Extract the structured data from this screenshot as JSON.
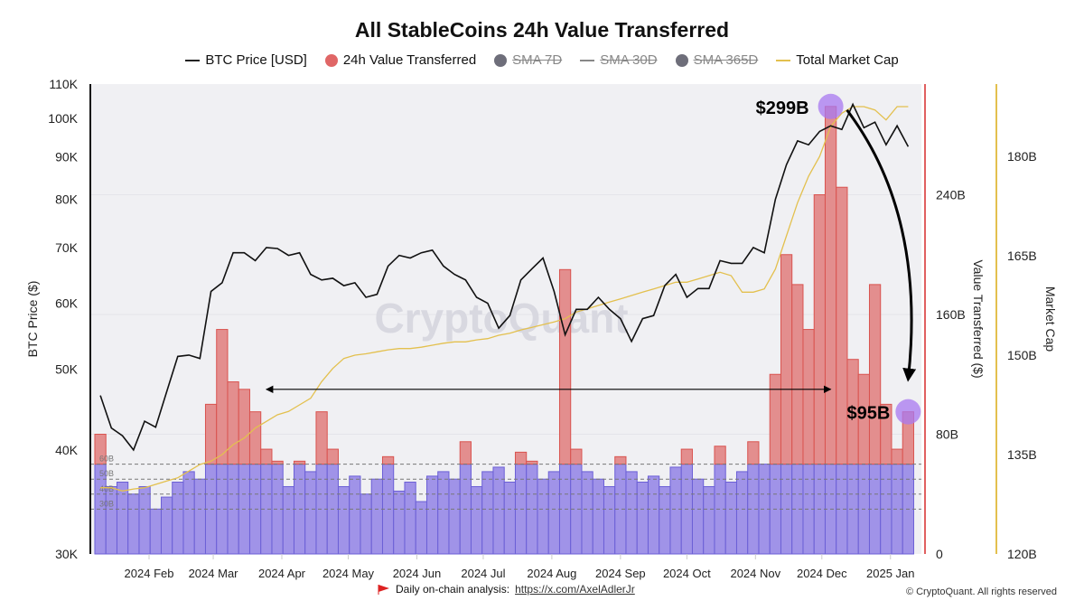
{
  "chart_data": {
    "type": "line+bar",
    "title": "All StableCoins 24h Value Transferred",
    "legend": [
      {
        "label": "BTC Price [USD]",
        "color": "#222222",
        "marker": "line",
        "enabled": true
      },
      {
        "label": "24h Value Transferred",
        "color": "#e06666",
        "marker": "dot",
        "enabled": true
      },
      {
        "label": "SMA 7D",
        "color": "#6e6e7a",
        "marker": "dot",
        "enabled": false
      },
      {
        "label": "SMA 30D",
        "color": "#888888",
        "marker": "line",
        "enabled": false
      },
      {
        "label": "SMA 365D",
        "color": "#6e6e7a",
        "marker": "dot",
        "enabled": false
      },
      {
        "label": "Total Market Cap",
        "color": "#e3c04e",
        "marker": "line",
        "enabled": true
      }
    ],
    "legend_position": "top",
    "x": [
      "2024-01-10",
      "2024-01-15",
      "2024-01-20",
      "2024-01-25",
      "2024-01-30",
      "2024-02-04",
      "2024-02-09",
      "2024-02-14",
      "2024-02-19",
      "2024-02-24",
      "2024-02-29",
      "2024-03-05",
      "2024-03-10",
      "2024-03-15",
      "2024-03-20",
      "2024-03-25",
      "2024-03-30",
      "2024-04-04",
      "2024-04-09",
      "2024-04-14",
      "2024-04-19",
      "2024-04-24",
      "2024-04-29",
      "2024-05-04",
      "2024-05-09",
      "2024-05-14",
      "2024-05-19",
      "2024-05-24",
      "2024-05-29",
      "2024-06-03",
      "2024-06-08",
      "2024-06-13",
      "2024-06-18",
      "2024-06-23",
      "2024-06-28",
      "2024-07-03",
      "2024-07-08",
      "2024-07-13",
      "2024-07-18",
      "2024-07-23",
      "2024-07-28",
      "2024-08-02",
      "2024-08-07",
      "2024-08-12",
      "2024-08-17",
      "2024-08-22",
      "2024-08-27",
      "2024-09-01",
      "2024-09-06",
      "2024-09-11",
      "2024-09-16",
      "2024-09-21",
      "2024-09-26",
      "2024-10-01",
      "2024-10-06",
      "2024-10-11",
      "2024-10-16",
      "2024-10-21",
      "2024-10-26",
      "2024-10-31",
      "2024-11-05",
      "2024-11-10",
      "2024-11-15",
      "2024-11-20",
      "2024-11-25",
      "2024-11-30",
      "2024-12-05",
      "2024-12-10",
      "2024-12-15",
      "2024-12-20",
      "2024-12-25",
      "2024-12-30",
      "2025-01-04",
      "2025-01-09"
    ],
    "series": [
      {
        "name": "BTC Price [USD]",
        "axis": "left",
        "type": "line",
        "color": "#111111",
        "values": [
          46500,
          42500,
          41600,
          40000,
          43300,
          42600,
          47000,
          51800,
          52000,
          51500,
          62000,
          63500,
          69000,
          69000,
          67500,
          70000,
          69800,
          68500,
          69000,
          65000,
          64000,
          64300,
          63000,
          63500,
          61000,
          61500,
          66500,
          68500,
          68000,
          69000,
          69500,
          66500,
          65000,
          64000,
          61000,
          60000,
          56000,
          58000,
          64000,
          66000,
          68000,
          62000,
          55000,
          59000,
          59000,
          61000,
          59000,
          57500,
          54000,
          57500,
          58000,
          63000,
          65000,
          61000,
          62500,
          62500,
          67500,
          67000,
          67000,
          70000,
          69000,
          80000,
          88000,
          94000,
          93000,
          96500,
          98000,
          97000,
          104000,
          97500,
          99000,
          93000,
          98000,
          92500
        ]
      },
      {
        "name": "24h Value Transferred",
        "axis": "right-1",
        "type": "bar",
        "color": "#e06666",
        "below_threshold_color": "#9d8fe6",
        "values": [
          80,
          45,
          48,
          40,
          45,
          30,
          38,
          48,
          55,
          50,
          100,
          150,
          115,
          110,
          95,
          70,
          62,
          45,
          62,
          55,
          95,
          70,
          45,
          52,
          40,
          50,
          65,
          42,
          48,
          35,
          52,
          55,
          50,
          75,
          45,
          55,
          58,
          48,
          68,
          62,
          50,
          55,
          190,
          70,
          55,
          50,
          45,
          65,
          55,
          48,
          52,
          45,
          58,
          70,
          50,
          45,
          72,
          48,
          55,
          75,
          60,
          120,
          200,
          180,
          150,
          240,
          299,
          245,
          130,
          120,
          180,
          100,
          70,
          95
        ]
      },
      {
        "name": "Total Market Cap",
        "axis": "right-2",
        "type": "line",
        "color": "#e3c04e",
        "values": [
          130,
          130,
          129.5,
          129.8,
          130,
          130.5,
          131,
          131.5,
          132.5,
          133.5,
          134,
          135,
          136.5,
          137.5,
          139,
          140,
          141,
          141.5,
          142.5,
          143.5,
          146,
          148,
          149.5,
          150,
          150.2,
          150.5,
          150.8,
          151,
          151,
          151.2,
          151.5,
          151.8,
          152,
          152,
          152.3,
          152.5,
          153,
          153.3,
          153.8,
          154.2,
          154.6,
          155,
          155.5,
          156.5,
          157,
          157.5,
          158,
          158.5,
          159,
          159.5,
          160,
          160.5,
          161,
          161,
          161.5,
          162,
          162.5,
          162,
          159.5,
          159.5,
          160,
          163,
          168,
          173,
          177,
          180,
          184.5,
          186.5,
          187.5,
          187.5,
          187,
          185.5,
          187.5,
          187.5
        ]
      }
    ],
    "threshold": {
      "value": 60,
      "unit": "B"
    },
    "reference_lines": [
      {
        "label": "60B",
        "value": 60
      },
      {
        "label": "50B",
        "value": 50
      },
      {
        "label": "40B",
        "value": 40
      },
      {
        "label": "30B",
        "value": 30
      }
    ],
    "axes": {
      "left": {
        "label": "BTC Price ($)",
        "scale": "log",
        "range": [
          30000,
          110000
        ],
        "ticks": [
          {
            "v": 30000,
            "t": "30K"
          },
          {
            "v": 40000,
            "t": "40K"
          },
          {
            "v": 50000,
            "t": "50K"
          },
          {
            "v": 60000,
            "t": "60K"
          },
          {
            "v": 70000,
            "t": "70K"
          },
          {
            "v": 80000,
            "t": "80K"
          },
          {
            "v": 90000,
            "t": "90K"
          },
          {
            "v": 100000,
            "t": "100K"
          },
          {
            "v": 110000,
            "t": "110K"
          }
        ]
      },
      "right1": {
        "label": "Value Transferred ($)",
        "scale": "linear",
        "range": [
          0,
          314
        ],
        "color": "#e06060",
        "ticks": [
          {
            "v": 0,
            "t": "0"
          },
          {
            "v": 80,
            "t": "80B"
          },
          {
            "v": 160,
            "t": "160B"
          },
          {
            "v": 240,
            "t": "240B"
          }
        ]
      },
      "right2": {
        "label": "Market Cap",
        "scale": "linear",
        "range": [
          120,
          191
        ],
        "color": "#e3c04e",
        "ticks": [
          {
            "v": 120,
            "t": "120B"
          },
          {
            "v": 135,
            "t": "135B"
          },
          {
            "v": 150,
            "t": "150B"
          },
          {
            "v": 165,
            "t": "165B"
          },
          {
            "v": 180,
            "t": "180B"
          }
        ]
      },
      "x": {
        "ticks": [
          {
            "d": "2024-02-01",
            "t": "2024 Feb"
          },
          {
            "d": "2024-03-01",
            "t": "2024 Mar"
          },
          {
            "d": "2024-04-01",
            "t": "2024 Apr"
          },
          {
            "d": "2024-05-01",
            "t": "2024 May"
          },
          {
            "d": "2024-06-01",
            "t": "2024 Jun"
          },
          {
            "d": "2024-07-01",
            "t": "2024 Jul"
          },
          {
            "d": "2024-08-01",
            "t": "2024 Aug"
          },
          {
            "d": "2024-09-01",
            "t": "2024 Sep"
          },
          {
            "d": "2024-10-01",
            "t": "2024 Oct"
          },
          {
            "d": "2024-11-01",
            "t": "2024 Nov"
          },
          {
            "d": "2024-12-01",
            "t": "2024 Dec"
          },
          {
            "d": "2025-01-01",
            "t": "2025 Jan"
          }
        ]
      }
    },
    "annotations": {
      "peak": {
        "label": "$299B",
        "date": "2024-12-05",
        "value": 299
      },
      "latest": {
        "label": "$95B",
        "date": "2025-01-09",
        "value": 95
      },
      "level_arrow": {
        "from_date": "2024-03-25",
        "to_date": "2024-12-05",
        "value": 110
      }
    },
    "grid": true
  },
  "watermark": "CryptoQuant",
  "footer": {
    "text": "Daily on-chain analysis:",
    "link": "https://x.com/AxelAdlerJr",
    "copyright": "© CryptoQuant. All rights reserved"
  }
}
